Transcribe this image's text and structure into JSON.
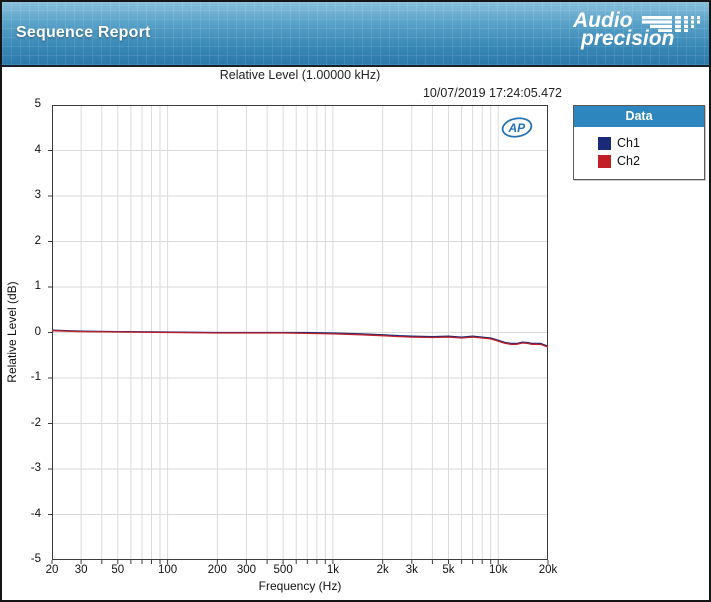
{
  "header": {
    "title": "Sequence Report",
    "logo": {
      "word1": "Audio",
      "word2": "precision"
    }
  },
  "report": {
    "title": "Relative Level (1.00000 kHz)",
    "timestamp": "10/07/2019 17:24:05.472"
  },
  "colors": {
    "legend_header": "#2e86be",
    "grid": "#dadada",
    "frame": "#3c3c3c",
    "ch1": "#1b2a78",
    "ch2": "#c12026",
    "ap_blue": "#2472b8"
  },
  "chart_data": {
    "type": "line",
    "title": "Relative Level (1.00000 kHz)",
    "xlabel": "Frequency (Hz)",
    "ylabel": "Relative Level (dB)",
    "x_scale": "log",
    "xlim": [
      20,
      20000
    ],
    "ylim": [
      -5,
      5
    ],
    "grid": true,
    "legend_position": "right",
    "watermark": "AP",
    "y_ticks": [
      5,
      4,
      3,
      2,
      1,
      0,
      -1,
      -2,
      -3,
      -4,
      -5
    ],
    "x_ticks": [
      {
        "label": "20",
        "value": 20
      },
      {
        "label": "30",
        "value": 30
      },
      {
        "label": "50",
        "value": 50
      },
      {
        "label": "100",
        "value": 100
      },
      {
        "label": "200",
        "value": 200
      },
      {
        "label": "300",
        "value": 300
      },
      {
        "label": "500",
        "value": 500
      },
      {
        "label": "1k",
        "value": 1000
      },
      {
        "label": "2k",
        "value": 2000
      },
      {
        "label": "3k",
        "value": 3000
      },
      {
        "label": "5k",
        "value": 5000
      },
      {
        "label": "10k",
        "value": 10000
      },
      {
        "label": "20k",
        "value": 20000
      }
    ],
    "legend": {
      "title": "Data"
    },
    "series": [
      {
        "name": "Ch1",
        "color": "#1b2a78",
        "x": [
          20,
          30,
          50,
          100,
          200,
          300,
          500,
          700,
          1000,
          1500,
          2000,
          2500,
          3000,
          4000,
          5000,
          6000,
          7000,
          8000,
          9000,
          10000,
          11000,
          12000,
          13000,
          14000,
          15000,
          16000,
          18000,
          20000
        ],
        "values": [
          0.05,
          0.03,
          0.02,
          0.01,
          0.0,
          0.0,
          0.0,
          0.0,
          -0.01,
          -0.03,
          -0.05,
          -0.07,
          -0.08,
          -0.09,
          -0.08,
          -0.1,
          -0.08,
          -0.1,
          -0.12,
          -0.17,
          -0.22,
          -0.24,
          -0.24,
          -0.21,
          -0.22,
          -0.24,
          -0.24,
          -0.3
        ]
      },
      {
        "name": "Ch2",
        "color": "#c12026",
        "x": [
          20,
          30,
          50,
          100,
          200,
          300,
          500,
          700,
          1000,
          1500,
          2000,
          2500,
          3000,
          4000,
          5000,
          6000,
          7000,
          8000,
          9000,
          10000,
          11000,
          12000,
          13000,
          14000,
          15000,
          16000,
          18000,
          20000
        ],
        "values": [
          0.04,
          0.02,
          0.01,
          0.0,
          -0.01,
          -0.01,
          -0.01,
          -0.02,
          -0.03,
          -0.05,
          -0.07,
          -0.09,
          -0.1,
          -0.11,
          -0.1,
          -0.12,
          -0.1,
          -0.12,
          -0.14,
          -0.19,
          -0.24,
          -0.26,
          -0.26,
          -0.23,
          -0.24,
          -0.26,
          -0.26,
          -0.32
        ]
      }
    ]
  }
}
